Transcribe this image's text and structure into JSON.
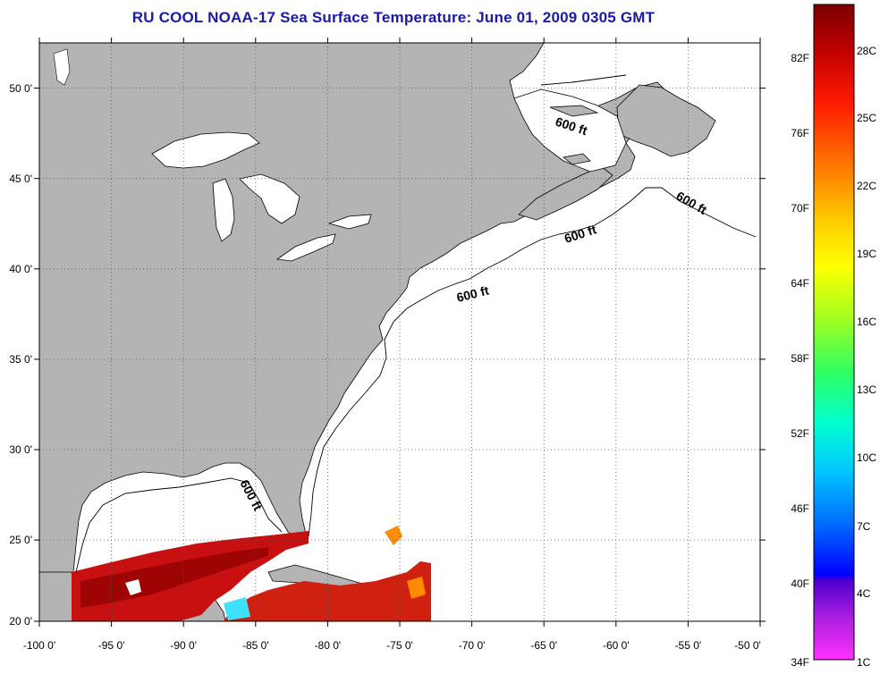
{
  "title": "RU COOL  NOAA-17  Sea Surface Temperature:  June 01, 2009 0305 GMT",
  "map": {
    "lon_range": [
      -100,
      -50
    ],
    "lat_range": [
      20,
      52
    ],
    "lon_ticks": [
      "-100 0'",
      "-95 0'",
      "-90 0'",
      "-85 0'",
      "-80 0'",
      "-75 0'",
      "-70 0'",
      "-65 0'",
      "-60 0'",
      "-55 0'",
      "-50 0'"
    ],
    "lat_ticks": [
      "50 0'",
      "45 0'",
      "40 0'",
      "35 0'",
      "30 0'",
      "25 0'",
      "20 0'"
    ],
    "grid": "dotted",
    "land_color": "#b4b4b4",
    "ocean_color": "#ffffff",
    "contour_labels": [
      "600 ft",
      "600 ft",
      "600 ft",
      "600 ft",
      "600 ft"
    ]
  },
  "colorbar": {
    "fahrenheit_labels": [
      "82F",
      "76F",
      "70F",
      "64F",
      "58F",
      "52F",
      "46F",
      "40F",
      "34F"
    ],
    "celsius_labels": [
      "28C",
      "25C",
      "22C",
      "19C",
      "16C",
      "13C",
      "10C",
      "7C",
      "4C",
      "1C"
    ],
    "colors_top_to_bottom": [
      "#8b0000",
      "#ff1a00",
      "#ff8c00",
      "#ffff00",
      "#7fff00",
      "#00ffa0",
      "#00ffff",
      "#00a0ff",
      "#0000ff",
      "#8000c0",
      "#ff40ff"
    ]
  }
}
